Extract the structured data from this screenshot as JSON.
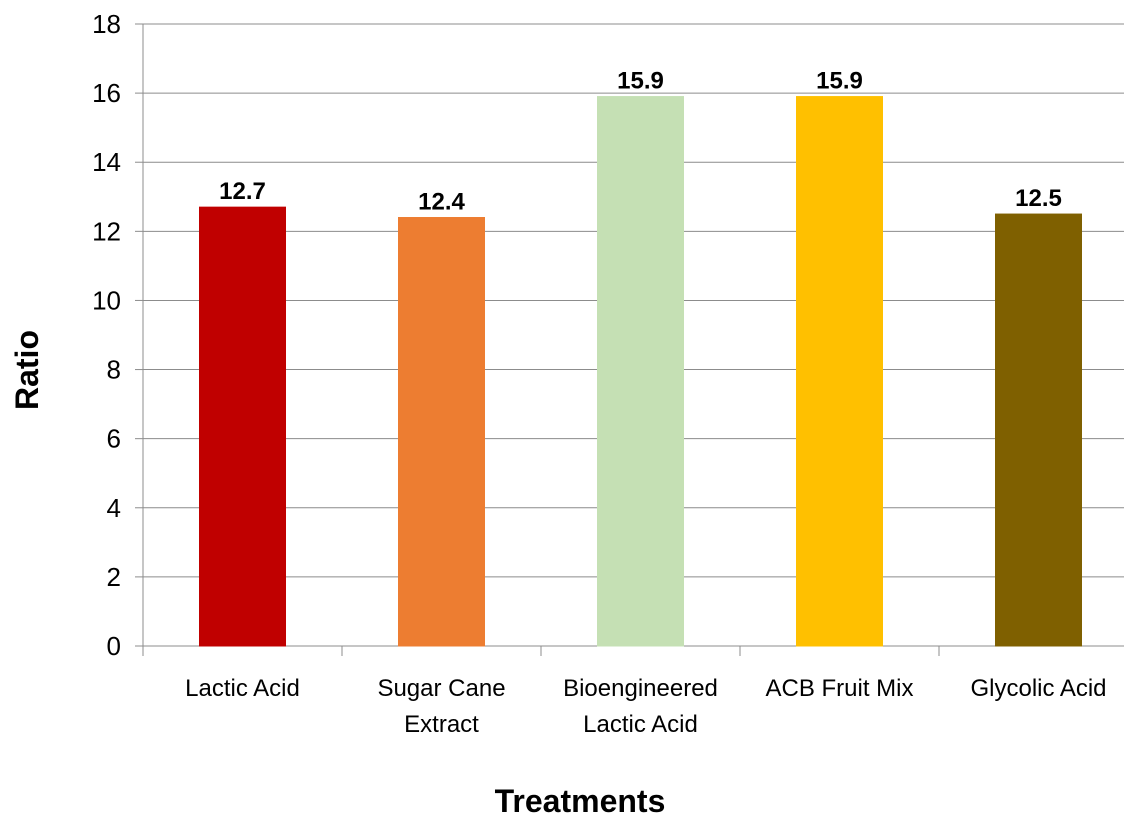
{
  "chart_data": {
    "type": "bar",
    "title": "",
    "xlabel": "Treatments",
    "ylabel": "Ratio",
    "ylim": [
      0,
      18
    ],
    "ytick_step": 2,
    "grid": true,
    "categories": [
      [
        "Lactic Acid"
      ],
      [
        "Sugar Cane",
        "Extract"
      ],
      [
        "Bioengineered",
        "Lactic Acid"
      ],
      [
        "ACB Fruit Mix"
      ],
      [
        "Glycolic Acid"
      ]
    ],
    "values": [
      12.7,
      12.4,
      15.9,
      15.9,
      12.5
    ],
    "value_labels": [
      "12.7",
      "12.4",
      "15.9",
      "15.9",
      "12.5"
    ],
    "colors": [
      "#c00000",
      "#ed7d31",
      "#c5e0b4",
      "#ffc000",
      "#7f6000"
    ]
  }
}
